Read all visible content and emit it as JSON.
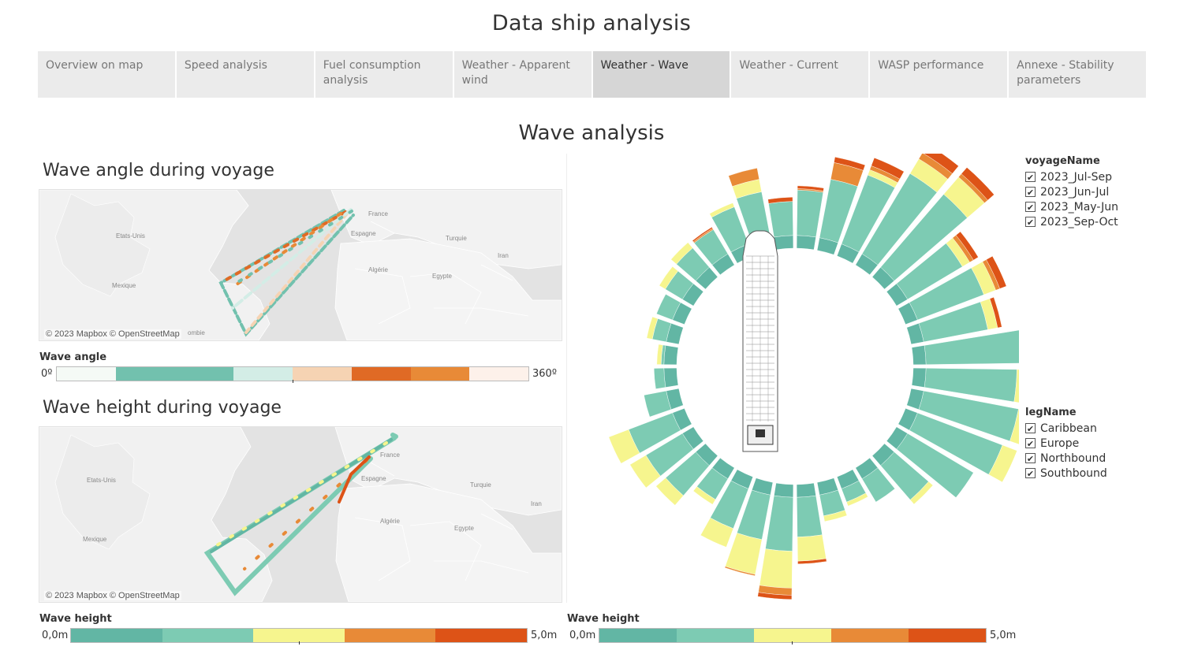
{
  "header": {
    "title": "Data ship analysis"
  },
  "tabs": [
    {
      "label": "Overview on map",
      "active": false
    },
    {
      "label": "Speed analysis",
      "active": false
    },
    {
      "label": "Fuel consumption analysis",
      "active": false
    },
    {
      "label": "Weather - Apparent wind",
      "active": false
    },
    {
      "label": "Weather - Wave",
      "active": true
    },
    {
      "label": "Weather - Current",
      "active": false
    },
    {
      "label": "WASP performance",
      "active": false
    },
    {
      "label": "Annexe - Stability parameters",
      "active": false
    }
  ],
  "section": {
    "title": "Wave analysis"
  },
  "angle_map": {
    "title": "Wave angle during voyage",
    "credit": "© 2023 Mapbox © OpenStreetMap",
    "place_labels": [
      "Etats-Unis",
      "Mexique",
      "France",
      "Espagne",
      "Turquie",
      "Algérie",
      "Egypte",
      "Iran",
      "ombie"
    ]
  },
  "height_map": {
    "title": "Wave height during voyage",
    "credit": "© 2023 Mapbox © OpenStreetMap",
    "place_labels": [
      "Etats-Unis",
      "Mexique",
      "France",
      "Espagne",
      "Turquie",
      "Algérie",
      "Egypte",
      "Iran"
    ]
  },
  "wave_angle_legend": {
    "label": "Wave angle",
    "min": "0º",
    "max": "360º",
    "colors": [
      "#f5faf6",
      "#72c1ae",
      "#72c1ae",
      "#d3ede6",
      "#f6d3b3",
      "#e06a25",
      "#e88a37",
      "#fdf1ea"
    ]
  },
  "wave_height_legend_left": {
    "label": "Wave height",
    "min": "0,0m",
    "max": "5,0m",
    "colors": [
      "#62b6a4",
      "#7dcbb3",
      "#f6f58e",
      "#e88a37",
      "#dd5317"
    ]
  },
  "wave_height_legend_right": {
    "label": "Wave height",
    "min": "0,0m",
    "max": "5,0m",
    "colors": [
      "#62b6a4",
      "#7dcbb3",
      "#f6f58e",
      "#e88a37",
      "#dd5317"
    ]
  },
  "filters": {
    "voyage": {
      "title": "voyageName",
      "items": [
        "2023_Jul-Sep",
        "2023_Jun-Jul",
        "2023_May-Jun",
        "2023_Sep-Oct"
      ]
    },
    "leg": {
      "title": "legName",
      "items": [
        "Caribbean",
        "Europe",
        "Northbound",
        "Southbound"
      ]
    }
  },
  "chart_data": {
    "type": "bar",
    "subtype": "polar-stacked",
    "categories_description": "wave direction sector (36 × 10°, clockwise from bow)",
    "legend_title": "Wave height",
    "bands": [
      {
        "name": "0-1m",
        "color": "#62b6a4"
      },
      {
        "name": "1-2m",
        "color": "#7dcbb3"
      },
      {
        "name": "2-3m",
        "color": "#f6f58e"
      },
      {
        "name": "3-4m",
        "color": "#e88a37"
      },
      {
        "name": "4-5m",
        "color": "#dd5317"
      }
    ],
    "sectors": [
      [
        0.9,
        3.2,
        0.0,
        0.1,
        0.2
      ],
      [
        0.9,
        4.2,
        0.0,
        1.2,
        0.4
      ],
      [
        0.9,
        5.2,
        0.4,
        0.3,
        0.6
      ],
      [
        0.9,
        6.6,
        1.2,
        0.5,
        0.7
      ],
      [
        0.9,
        6.8,
        1.6,
        0.3,
        0.6
      ],
      [
        0.9,
        4.5,
        0.6,
        0.3,
        0.4
      ],
      [
        0.9,
        5.0,
        0.9,
        0.3,
        0.5
      ],
      [
        0.9,
        4.6,
        0.7,
        0.0,
        0.3
      ],
      [
        0.9,
        7.8,
        1.3,
        0.0,
        0.0
      ],
      [
        0.9,
        6.4,
        0.7,
        0.0,
        0.0
      ],
      [
        0.9,
        6.8,
        0.9,
        0.0,
        0.0
      ],
      [
        0.9,
        6.4,
        1.1,
        0.0,
        0.0
      ],
      [
        0.9,
        5.4,
        0.0,
        0.0,
        0.0
      ],
      [
        0.9,
        3.2,
        0.4,
        0.0,
        0.0
      ],
      [
        0.9,
        1.9,
        0.0,
        0.0,
        0.0
      ],
      [
        0.9,
        1.0,
        0.3,
        0.0,
        0.0
      ],
      [
        0.9,
        1.5,
        0.4,
        0.0,
        0.0
      ],
      [
        0.9,
        2.8,
        1.7,
        0.0,
        0.2
      ],
      [
        0.9,
        3.8,
        2.6,
        0.5,
        0.3
      ],
      [
        0.9,
        3.2,
        2.5,
        0.1,
        0.0
      ],
      [
        0.9,
        3.0,
        1.4,
        0.0,
        0.0
      ],
      [
        0.9,
        1.7,
        0.4,
        0.0,
        0.0
      ],
      [
        0.9,
        2.8,
        0.9,
        0.0,
        0.0
      ],
      [
        0.9,
        3.0,
        1.3,
        0.0,
        0.0
      ],
      [
        0.9,
        3.3,
        1.5,
        0.0,
        0.0
      ],
      [
        0.9,
        1.6,
        0.0,
        0.0,
        0.0
      ],
      [
        0.9,
        0.7,
        0.0,
        0.0,
        0.0
      ],
      [
        0.9,
        0.2,
        0.3,
        0.0,
        0.0
      ],
      [
        0.9,
        1.0,
        0.4,
        0.0,
        0.0
      ],
      [
        0.9,
        1.2,
        0.0,
        0.0,
        0.0
      ],
      [
        0.9,
        1.4,
        0.5,
        0.0,
        0.0
      ],
      [
        0.9,
        1.8,
        0.5,
        0.0,
        0.0
      ],
      [
        0.9,
        2.0,
        0.0,
        0.1,
        0.1
      ],
      [
        0.9,
        2.8,
        0.3,
        0.0,
        0.0
      ],
      [
        0.9,
        3.3,
        0.9,
        0.8,
        0.0
      ],
      [
        0.9,
        2.4,
        0.0,
        0.0,
        0.3
      ]
    ]
  }
}
